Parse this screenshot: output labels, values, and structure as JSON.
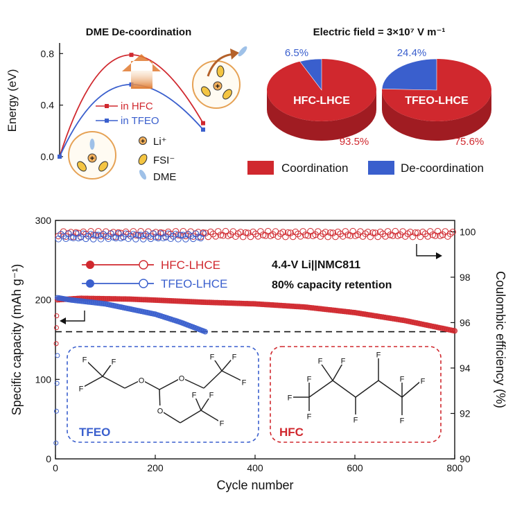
{
  "chart_data": [
    {
      "type": "line",
      "title": "DME De-coordination",
      "ylabel": "Energy (eV)",
      "ylim": [
        0,
        0.85
      ],
      "yticks": [
        "0.0",
        "0.4",
        "0.8"
      ],
      "x": [
        0,
        1,
        2
      ],
      "series": [
        {
          "name": "in HFC",
          "values": [
            0.0,
            0.79,
            0.26
          ],
          "color": "#d0282e"
        },
        {
          "name": "in TFEO",
          "values": [
            0.0,
            0.56,
            0.21
          ],
          "color": "#3a5fcd"
        }
      ],
      "legend_labels": {
        "li": "Li⁺",
        "fsi": "FSI⁻",
        "dme": "DME"
      },
      "symbol_plus": "+"
    },
    {
      "type": "pie",
      "title": "Electric field = 3×10⁷ V m⁻¹",
      "pies": [
        {
          "name": "HFC-LHCE",
          "coordination": 93.5,
          "decoordination": 6.5,
          "label_coord": "93.5%",
          "label_decoord": "6.5%"
        },
        {
          "name": "TFEO-LHCE",
          "coordination": 75.6,
          "decoordination": 24.4,
          "label_coord": "75.6%",
          "label_decoord": "24.4%"
        }
      ],
      "legend": [
        "Coordination",
        "De-coordination"
      ],
      "colors": {
        "coordination": "#d0282e",
        "decoordination": "#3a5fcd"
      }
    },
    {
      "type": "scatter",
      "xlabel": "Cycle number",
      "ylabel": "Specific capacity (mAh g⁻¹)",
      "ylabel_right": "Coulombic efficiency (%)",
      "xlim": [
        0,
        800
      ],
      "ylim": [
        0,
        300
      ],
      "ylim_right": [
        90,
        100.5
      ],
      "xticks": [
        "0",
        "200",
        "400",
        "600",
        "800"
      ],
      "yticks": [
        "0",
        "100",
        "200",
        "300"
      ],
      "yticks_right": [
        "90",
        "92",
        "94",
        "96",
        "98",
        "100"
      ],
      "series": [
        {
          "name": "HFC-LHCE",
          "cycles": 800,
          "capacity_points": [
            [
              1,
              200
            ],
            [
              50,
              202
            ],
            [
              150,
              201
            ],
            [
              300,
              197
            ],
            [
              400,
              195
            ],
            [
              500,
              191
            ],
            [
              600,
              184
            ],
            [
              700,
              174
            ],
            [
              800,
              161
            ]
          ],
          "ce": 99.9,
          "color": "#d0282e"
        },
        {
          "name": "TFEO-LHCE",
          "cycles": 300,
          "capacity_points": [
            [
              1,
              203
            ],
            [
              30,
              200
            ],
            [
              100,
              195
            ],
            [
              200,
              182
            ],
            [
              250,
              172
            ],
            [
              300,
              160
            ]
          ],
          "ce": 99.8,
          "color": "#3a5fcd"
        }
      ],
      "reference_line_capacity": 160,
      "annotation_1": "4.4-V Li||NMC811",
      "annotation_2": "80% capacity retention",
      "molecules": {
        "tfeo": "TFEO",
        "hfc": "HFC",
        "atom_f": "F",
        "atom_o": "O"
      }
    }
  ]
}
